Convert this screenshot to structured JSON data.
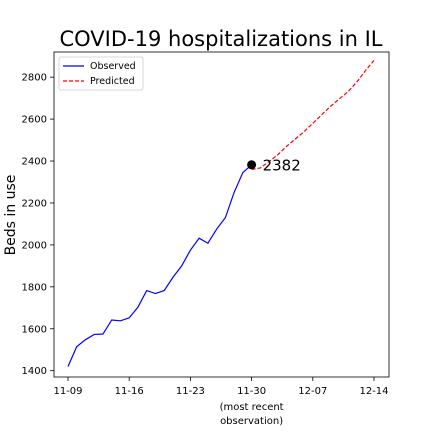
{
  "chart_data": {
    "type": "line",
    "title": "COVID-19 hospitalizations in IL",
    "xlabel": "",
    "ylabel": "Beds in use",
    "x_start": "11-09",
    "x_end": "12-14",
    "xlim": [
      "11-09",
      "12-14"
    ],
    "ylim": [
      1370,
      2920
    ],
    "x_ticks": [
      {
        "x": "11-09",
        "label": "11-09",
        "sub": ""
      },
      {
        "x": "11-16",
        "label": "11-16",
        "sub": ""
      },
      {
        "x": "11-23",
        "label": "11-23",
        "sub": ""
      },
      {
        "x": "11-30",
        "label": "11-30",
        "sub": "(most recent|observation)"
      },
      {
        "x": "12-07",
        "label": "12-07",
        "sub": ""
      },
      {
        "x": "12-14",
        "label": "12-14",
        "sub": ""
      }
    ],
    "y_ticks": [
      1400,
      1600,
      1800,
      2000,
      2200,
      2400,
      2600,
      2800
    ],
    "legend": {
      "position": "top-left",
      "entries": [
        {
          "label": "Observed",
          "color": "#0000ff",
          "style": "solid"
        },
        {
          "label": "Predicted",
          "color": "#ff0000",
          "style": "dashed"
        }
      ]
    },
    "series": [
      {
        "name": "Observed",
        "color": "#0000ff",
        "style": "solid",
        "points": [
          [
            "11-09",
            1420
          ],
          [
            "11-10",
            1515
          ],
          [
            "11-11",
            1548
          ],
          [
            "11-12",
            1573
          ],
          [
            "11-13",
            1575
          ],
          [
            "11-14",
            1642
          ],
          [
            "11-15",
            1638
          ],
          [
            "11-16",
            1652
          ],
          [
            "11-17",
            1703
          ],
          [
            "11-18",
            1782
          ],
          [
            "11-19",
            1768
          ],
          [
            "11-20",
            1782
          ],
          [
            "11-21",
            1845
          ],
          [
            "11-22",
            1900
          ],
          [
            "11-23",
            1975
          ],
          [
            "11-24",
            2032
          ],
          [
            "11-25",
            2008
          ],
          [
            "11-26",
            2075
          ],
          [
            "11-27",
            2130
          ],
          [
            "11-28",
            2250
          ],
          [
            "11-29",
            2345
          ],
          [
            "11-30",
            2382
          ]
        ]
      },
      {
        "name": "Predicted",
        "color": "#ff0000",
        "style": "dashed",
        "points": [
          [
            "11-30",
            2360
          ],
          [
            "12-01",
            2367
          ],
          [
            "12-02",
            2398
          ],
          [
            "12-03",
            2430
          ],
          [
            "12-04",
            2470
          ],
          [
            "12-05",
            2505
          ],
          [
            "12-06",
            2540
          ],
          [
            "12-07",
            2580
          ],
          [
            "12-08",
            2620
          ],
          [
            "12-09",
            2660
          ],
          [
            "12-10",
            2695
          ],
          [
            "12-11",
            2730
          ],
          [
            "12-12",
            2775
          ],
          [
            "12-13",
            2830
          ],
          [
            "12-14",
            2880
          ]
        ]
      }
    ],
    "annotation": {
      "x": "11-30",
      "y": 2382,
      "label": "2382"
    },
    "grid": false
  }
}
